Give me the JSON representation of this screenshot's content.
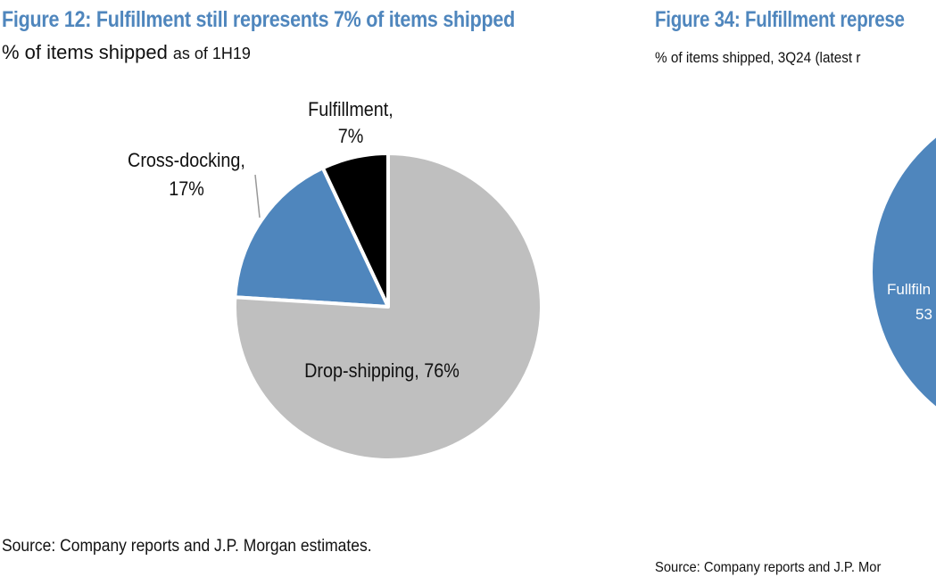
{
  "left": {
    "title": "Figure 12: Fulfillment still represents 7% of items shipped",
    "subtitle": "% of items shipped",
    "subtitle_note": "as of 1H19",
    "source": "Source: Company reports and J.P. Morgan estimates."
  },
  "right": {
    "title": "Figure 34: Fulfillment represe",
    "subtitle": "% of items shipped, 3Q24 (latest r",
    "source": "Source: Company reports and J.P. Mor",
    "label_line1": "Fullfiln",
    "label_line2": "53"
  },
  "chart_data": [
    {
      "type": "pie",
      "title": "Figure 12: Fulfillment still represents 7% of items shipped",
      "subtitle": "% of items shipped as of 1H19",
      "slices": [
        {
          "label_line1": "Fulfillment,",
          "label_line2": "7%",
          "value": 7,
          "color": "#000000"
        },
        {
          "label_line1": "Cross-docking,",
          "label_line2": "17%",
          "value": 17,
          "color": "#4f86bd"
        },
        {
          "label_line1": "Drop-shipping, 76%",
          "label_line2": "",
          "value": 76,
          "color": "#bfbfbf"
        }
      ]
    }
  ],
  "colors": {
    "title": "#4f86bd",
    "right_pie": "#4f86bd"
  }
}
